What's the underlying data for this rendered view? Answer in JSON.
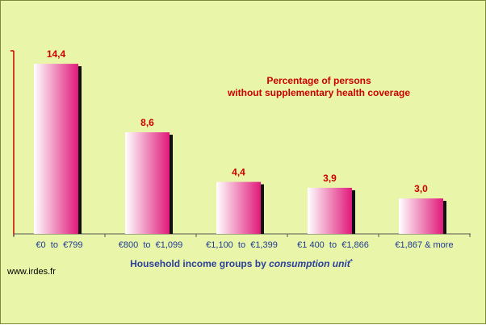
{
  "chart_data": {
    "type": "bar",
    "title_lines": [
      "Percentage of persons",
      "without supplementary health coverage"
    ],
    "categories": [
      "€0  to  €799",
      "€800  to  €1,099",
      "€1,100  to  €1,399",
      "€1 400  to  €1,866",
      "€1,867 & more"
    ],
    "values": [
      14.4,
      8.6,
      4.4,
      3.9,
      3.0
    ],
    "value_labels": [
      "14,4",
      "8,6",
      "4,4",
      "3,9",
      "3,0"
    ],
    "xlabel_main": "Household income groups by ",
    "xlabel_italic": "consumption unit",
    "xlabel_suffix": "*",
    "ylabel": "",
    "ylim": [
      0,
      15.5
    ],
    "grid": false,
    "colors": {
      "background": "#e9f5a8",
      "bar_light": "#ffffff",
      "bar_dark": "#e0197a",
      "bar_shadow": "#111111",
      "value_text": "#cc0000",
      "axis_line": "#cc0000",
      "category_text": "#1f3a93"
    }
  },
  "footer": {
    "source": "www.irdes.fr"
  }
}
